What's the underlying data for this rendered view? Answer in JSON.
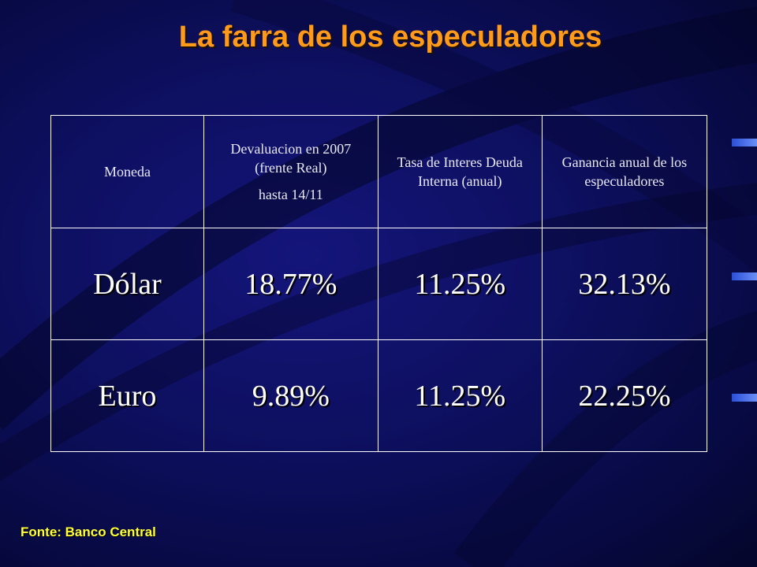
{
  "slide": {
    "title": "La farra de los especuladores",
    "source": "Fonte: Banco Central"
  },
  "table": {
    "headers": [
      "Moneda",
      [
        "Devaluacion en 2007 (frente Real)",
        "hasta 14/11"
      ],
      "Tasa de Interes Deuda Interna (anual)",
      "Ganancia anual de los especuladores"
    ],
    "rows": [
      [
        "Dólar",
        "18.77%",
        "11.25%",
        "32.13%"
      ],
      [
        "Euro",
        "9.89%",
        "11.25%",
        "22.25%"
      ]
    ]
  },
  "colors": {
    "title": "#ff9a1a",
    "source": "#ffff33",
    "background": "#0d0f5e",
    "text": "#ffffff"
  }
}
